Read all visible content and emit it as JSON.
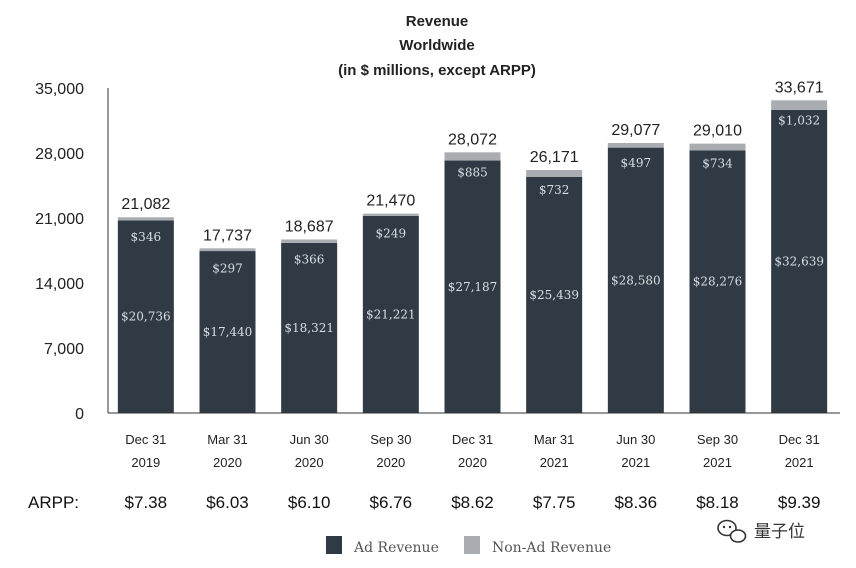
{
  "chart_data": {
    "type": "bar",
    "stacked": true,
    "title": [
      "Revenue",
      "Worldwide",
      "(in $ millions, except ARPP)"
    ],
    "categories": [
      [
        "Dec 31",
        "2019"
      ],
      [
        "Mar 31",
        "2020"
      ],
      [
        "Jun 30",
        "2020"
      ],
      [
        "Sep 30",
        "2020"
      ],
      [
        "Dec 31",
        "2020"
      ],
      [
        "Mar 31",
        "2021"
      ],
      [
        "Jun 30",
        "2021"
      ],
      [
        "Sep 30",
        "2021"
      ],
      [
        "Dec 31",
        "2021"
      ]
    ],
    "series": [
      {
        "name": "Ad Revenue",
        "color": "#2f3a44",
        "values": [
          20736,
          17440,
          18321,
          21221,
          27187,
          25439,
          28580,
          28276,
          32639
        ],
        "labels": [
          "$20,736",
          "$17,440",
          "$18,321",
          "$21,221",
          "$27,187",
          "$25,439",
          "$28,580",
          "$28,276",
          "$32,639"
        ]
      },
      {
        "name": "Non-Ad Revenue",
        "color": "#a9adb1",
        "values": [
          346,
          297,
          366,
          249,
          885,
          732,
          497,
          734,
          1032
        ],
        "labels": [
          "$346",
          "$297",
          "$366",
          "$249",
          "$885",
          "$732",
          "$497",
          "$734",
          "$1,032"
        ]
      }
    ],
    "totals": [
      "21,082",
      "17,737",
      "18,687",
      "21,470",
      "28,072",
      "26,171",
      "29,077",
      "29,010",
      "33,671"
    ],
    "ylim": [
      0,
      35000
    ],
    "yticks": [
      "0",
      "7,000",
      "14,000",
      "21,000",
      "28,000",
      "35,000"
    ],
    "ytick_values": [
      0,
      7000,
      14000,
      21000,
      28000,
      35000
    ],
    "grid": false,
    "arpp_label": "ARPP:",
    "arpp_values": [
      "$7.38",
      "$6.03",
      "$6.10",
      "$6.76",
      "$8.62",
      "$7.75",
      "$8.36",
      "$8.18",
      "$9.39"
    ],
    "legend_position": "bottom-center"
  },
  "watermark": {
    "icon": "wechat-icon",
    "text": "量子位"
  }
}
